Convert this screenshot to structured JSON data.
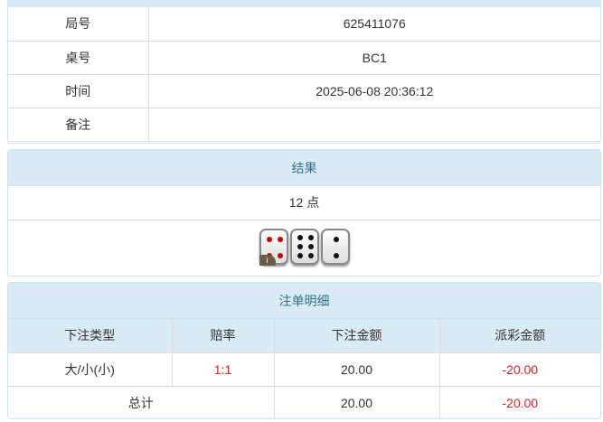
{
  "info": {
    "rows": [
      {
        "label": "局号",
        "value": "625411076"
      },
      {
        "label": "桌号",
        "value": "BC1"
      },
      {
        "label": "时间",
        "value": "2025-06-08 20:36:12"
      },
      {
        "label": "备注",
        "value": ""
      }
    ]
  },
  "result": {
    "title": "结果",
    "points": "12 点",
    "dice": [
      4,
      6,
      2
    ],
    "info_badge": "i"
  },
  "bets": {
    "title": "注单明细",
    "columns": [
      "下注类型",
      "赔率",
      "下注金额",
      "派彩金额"
    ],
    "rows": [
      {
        "type": "大/小(小)",
        "odds": "1:1",
        "amount": "20.00",
        "payout": "-20.00"
      }
    ],
    "total": {
      "label": "总计",
      "amount": "20.00",
      "payout": "-20.00"
    }
  },
  "colors": {
    "header_bg": "#d9ecf5",
    "header_text": "#31708f",
    "negative": "#e02020"
  }
}
